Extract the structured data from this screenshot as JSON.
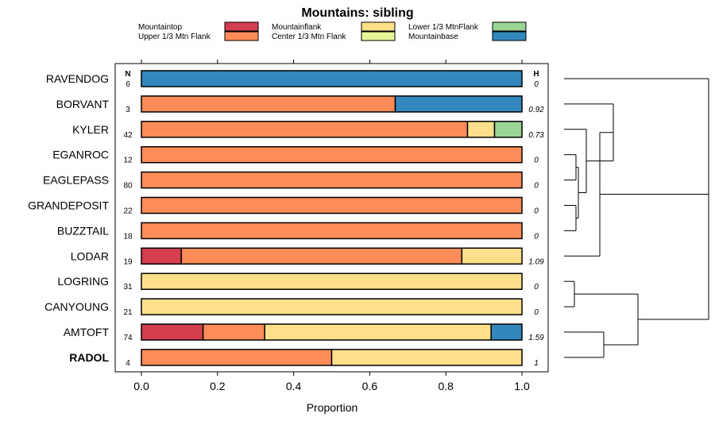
{
  "chart_data": {
    "type": "bar",
    "orientation": "horizontal-stacked",
    "title": "Mountains: sibling",
    "xlabel": "Proportion",
    "xlim": [
      0,
      1
    ],
    "xticks": [
      "0.0",
      "0.2",
      "0.4",
      "0.6",
      "0.8",
      "1.0"
    ],
    "n_header": "N",
    "h_header": "H",
    "categories_legend": [
      {
        "name": "Mountaintop",
        "color": "#d53e4f"
      },
      {
        "name": "Upper 1/3 Mtn Flank",
        "color": "#fc8d59"
      },
      {
        "name": "Mountainflank",
        "color": "#fee08b"
      },
      {
        "name": "Center 1/3 Mtn Flank",
        "color": "#e6f598"
      },
      {
        "name": "Lower 1/3 MtnFlank",
        "color": "#99d594"
      },
      {
        "name": "Mountainbase",
        "color": "#3288bd"
      }
    ],
    "rows": [
      {
        "label": "RAVENDOG",
        "n": "6",
        "h": "0",
        "bold": false,
        "segments": [
          0,
          0,
          0,
          0,
          0,
          1
        ]
      },
      {
        "label": "BORVANT",
        "n": "3",
        "h": "0.92",
        "bold": false,
        "segments": [
          0,
          0.667,
          0,
          0,
          0,
          0.333
        ]
      },
      {
        "label": "KYLER",
        "n": "42",
        "h": "0.73",
        "bold": false,
        "segments": [
          0,
          0.857,
          0.071,
          0,
          0.072,
          0
        ]
      },
      {
        "label": "EGANROC",
        "n": "12",
        "h": "0",
        "bold": false,
        "segments": [
          0,
          1,
          0,
          0,
          0,
          0
        ]
      },
      {
        "label": "EAGLEPASS",
        "n": "80",
        "h": "0",
        "bold": false,
        "segments": [
          0,
          1,
          0,
          0,
          0,
          0
        ]
      },
      {
        "label": "GRANDEPOSIT",
        "n": "22",
        "h": "0",
        "bold": false,
        "segments": [
          0,
          1,
          0,
          0,
          0,
          0
        ]
      },
      {
        "label": "BUZZTAIL",
        "n": "18",
        "h": "0",
        "bold": false,
        "segments": [
          0,
          1,
          0,
          0,
          0,
          0
        ]
      },
      {
        "label": "LODAR",
        "n": "19",
        "h": "1.09",
        "bold": false,
        "segments": [
          0.105,
          0.737,
          0.158,
          0,
          0,
          0
        ]
      },
      {
        "label": "LOGRING",
        "n": "31",
        "h": "0",
        "bold": false,
        "segments": [
          0,
          0,
          1,
          0,
          0,
          0
        ]
      },
      {
        "label": "CANYOUNG",
        "n": "21",
        "h": "0",
        "bold": false,
        "segments": [
          0,
          0,
          1,
          0,
          0,
          0
        ]
      },
      {
        "label": "AMTOFT",
        "n": "74",
        "h": "1.59",
        "bold": false,
        "segments": [
          0.162,
          0.162,
          0.595,
          0,
          0,
          0.081
        ]
      },
      {
        "label": "RADOL",
        "n": "4",
        "h": "1",
        "bold": true,
        "segments": [
          0,
          0.5,
          0.5,
          0,
          0,
          0
        ]
      }
    ]
  }
}
